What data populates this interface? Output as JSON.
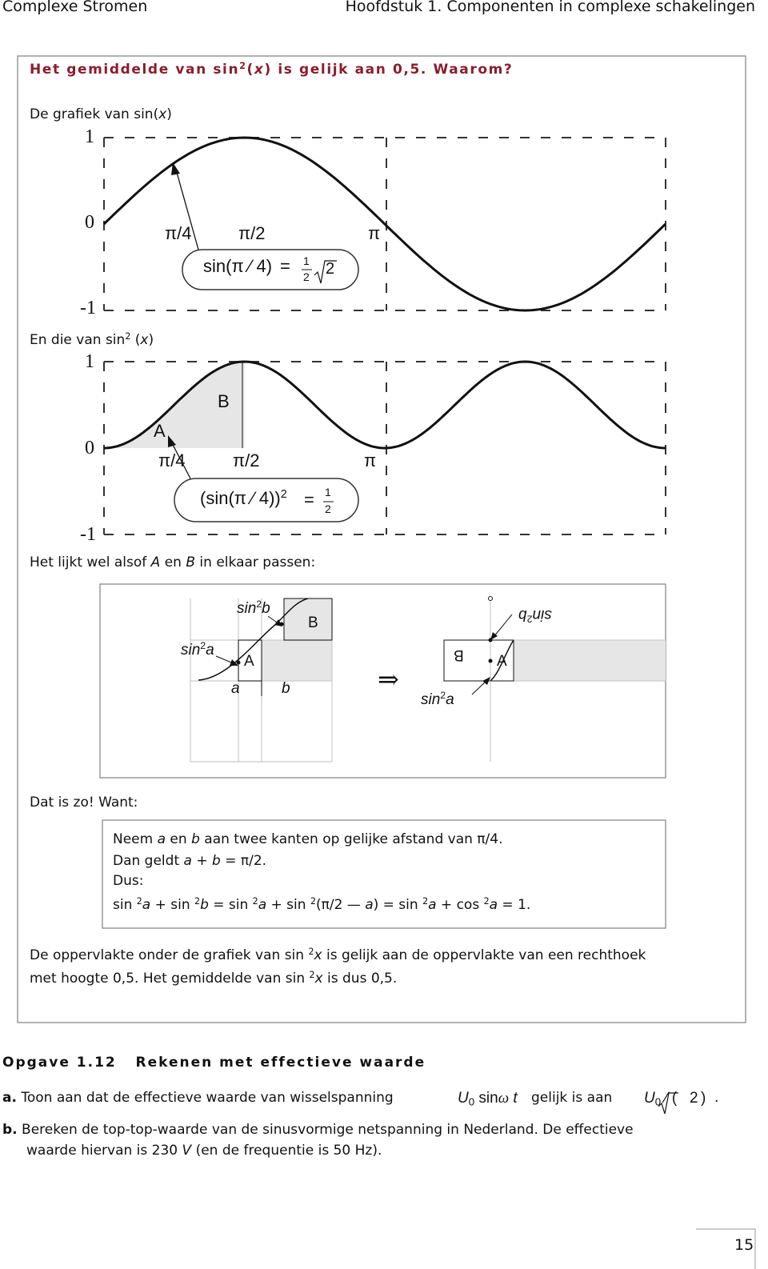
{
  "header": {
    "left": "Complexe Stromen",
    "right": "Hoofdstuk 1. Componenten in complexe schakelingen"
  },
  "section": {
    "title": [
      "Het gemiddelde van sin",
      "2",
      "(",
      "x",
      ") is gelijk aan 0,5. Waarom?"
    ],
    "graph_sin": {
      "caption": [
        "De grafiek van sin(",
        "x",
        ")"
      ],
      "y_labels": [
        "1",
        "0",
        "-1"
      ],
      "x_labels": [
        "π/4",
        "π/2",
        "π"
      ],
      "callout": [
        "sin(π ⁄ 4)",
        "=",
        "1",
        "2",
        "2"
      ]
    },
    "graph_sin2": {
      "caption": [
        "En die van sin",
        "2",
        " (",
        "x",
        ")"
      ],
      "y_labels": [
        "1",
        "0",
        "-1"
      ],
      "x_labels": [
        "π/4",
        "π/2",
        "π"
      ],
      "area_labels": [
        "A",
        "B"
      ],
      "callout": [
        "(sin(π ⁄ 4))",
        "2",
        "=",
        "1",
        "2"
      ]
    },
    "intro": [
      "Het lijkt wel alsof ",
      "A",
      " en ",
      "B",
      " in elkaar passen:"
    ],
    "diagram": {
      "left": {
        "top_label": [
          "sin",
          "2",
          "b"
        ],
        "B": "B",
        "bottom_label": [
          "sin",
          "2",
          "a"
        ],
        "A": "A",
        "a": "a",
        "b": "b"
      },
      "arrow": "⇒",
      "right": {
        "top_label": [
          "sin",
          "2",
          "b"
        ],
        "B": "B",
        "A": "A",
        "bottom_label": [
          "sin",
          "2",
          "a"
        ]
      }
    },
    "want": "Dat is zo! Want:",
    "proof": [
      [
        "Neem ",
        "a",
        " en ",
        "b",
        " aan twee kanten op gelijke afstand van π/4."
      ],
      [
        "Dan geldt ",
        "a",
        " + ",
        "b",
        " = π/2."
      ],
      [
        "Dus:"
      ],
      [
        "sin ",
        "2",
        "a",
        " + sin ",
        "2",
        "b",
        " = sin ",
        "2",
        "a",
        " + sin ",
        "2",
        "(π/2 — ",
        "a",
        ") = sin ",
        "2",
        "a",
        " + cos ",
        "2",
        "a",
        " = 1."
      ]
    ],
    "conclusion": [
      [
        "De oppervlakte onder de grafiek van sin ",
        "2",
        "x",
        " is gelijk aan de oppervlakte van een rechthoek"
      ],
      [
        "met hoogte 0,5. Het gemiddelde van sin ",
        "2",
        "x",
        " is dus 0,5."
      ]
    ]
  },
  "exercise": {
    "title": "Opgave 1.12",
    "subtitle": "Rekenen met effectieve waarde",
    "a": [
      "a.",
      " Toon aan dat de effectieve waarde van wisselspanning",
      "U",
      "0",
      "sin",
      "ω",
      "t",
      "gelijk is aan",
      "U",
      "0",
      " ⁄ (",
      "2",
      ")",
      "."
    ],
    "b": [
      [
        "b.",
        " Bereken de top-top-waarde van de sinusvormige netspanning in Nederland. De effectieve"
      ],
      [
        "waarde hiervan is 230 ",
        "V",
        " (en de frequentie is 50 Hz)."
      ]
    ]
  },
  "page_number": "15"
}
